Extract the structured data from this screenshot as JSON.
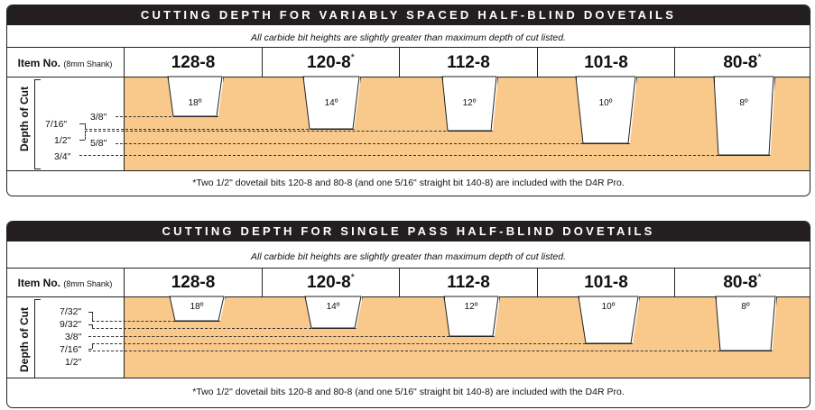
{
  "panels": [
    {
      "title": "CUTTING DEPTH FOR VARIABLY SPACED HALF-BLIND DOVETAILS",
      "note": "All carbide bit heights are slightly greater than maximum depth of cut listed.",
      "item_label_bold": "Item No.",
      "item_label_small": "(8mm Shank)",
      "depth_label": "Depth of Cut",
      "footnote": "*Two 1/2\" dovetail bits 120-8 and 80-8 (and one 5/16\" straight bit 140-8) are included with the D4R Pro.",
      "bits": [
        {
          "name": "128-8",
          "mark": "",
          "angle": "18º"
        },
        {
          "name": "120-8",
          "mark": "*",
          "angle": "14º"
        },
        {
          "name": "112-8",
          "mark": "",
          "angle": "12º"
        },
        {
          "name": "101-8",
          "mark": "",
          "angle": "10º"
        },
        {
          "name": "80-8",
          "mark": "*",
          "angle": "8º"
        }
      ],
      "depths": [
        {
          "label": "3/8\""
        },
        {
          "label": "7/16\""
        },
        {
          "label": "1/2\""
        },
        {
          "label": "5/8\""
        },
        {
          "label": "3/4\""
        }
      ]
    },
    {
      "title": "CUTTING DEPTH FOR SINGLE PASS HALF-BLIND DOVETAILS",
      "note": "All carbide bit heights are slightly greater than maximum depth of cut listed.",
      "item_label_bold": "Item No.",
      "item_label_small": "(8mm Shank)",
      "depth_label": "Depth of Cut",
      "footnote": "*Two 1/2\" dovetail bits 120-8 and 80-8 (and one 5/16\" straight bit 140-8) are included with the D4R Pro.",
      "bits": [
        {
          "name": "128-8",
          "mark": "",
          "angle": "18º"
        },
        {
          "name": "120-8",
          "mark": "*",
          "angle": "14º"
        },
        {
          "name": "112-8",
          "mark": "",
          "angle": "12º"
        },
        {
          "name": "101-8",
          "mark": "",
          "angle": "10º"
        },
        {
          "name": "80-8",
          "mark": "*",
          "angle": "8º"
        }
      ],
      "depths": [
        {
          "label": "7/32\""
        },
        {
          "label": "9/32\""
        },
        {
          "label": "3/8\""
        },
        {
          "label": "7/16\""
        },
        {
          "label": "1/2\""
        }
      ]
    }
  ]
}
